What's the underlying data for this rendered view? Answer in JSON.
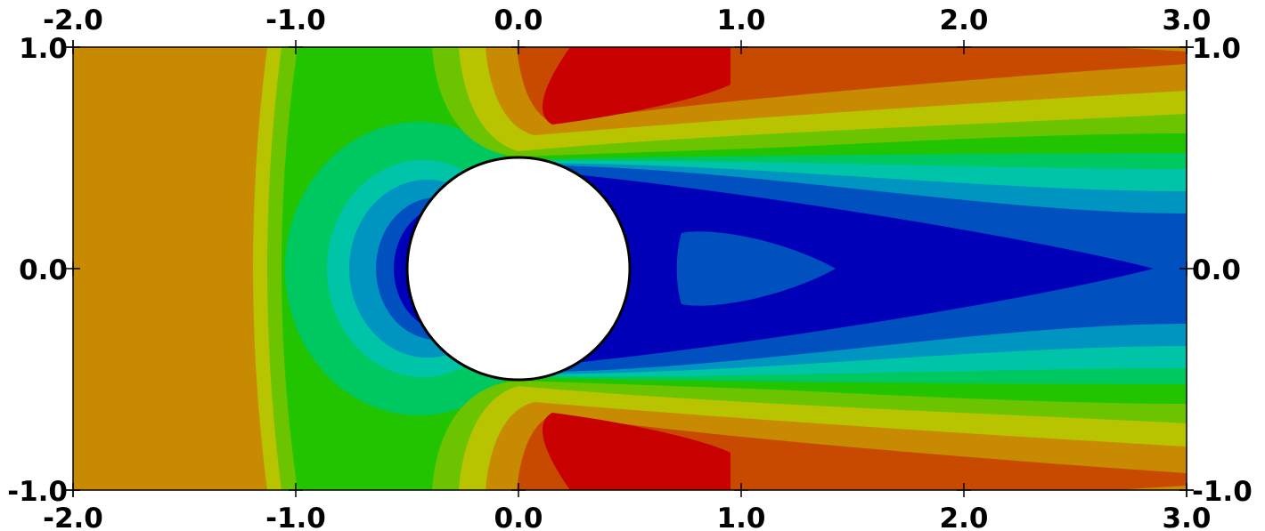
{
  "chart_data": {
    "type": "heatmap",
    "subtype": "filled-contour",
    "xlim": [
      -2.0,
      3.0
    ],
    "ylim": [
      -1.0,
      1.0
    ],
    "x_ticks": [
      "-2.0",
      "-1.0",
      "0.0",
      "1.0",
      "2.0",
      "3.0"
    ],
    "y_ticks": [
      "1.0",
      "0.0",
      "-1.0"
    ],
    "obstacle": {
      "shape": "circle",
      "center": [
        0.0,
        0.0
      ],
      "radius": 0.5
    },
    "grid": false,
    "legend": "none",
    "colormap_levels": [
      "#0000b8",
      "#0050c0",
      "#0094c0",
      "#00c4a8",
      "#00c860",
      "#22c400",
      "#6cc400",
      "#b8c400",
      "#c88a00",
      "#c84a00",
      "#c80000"
    ]
  }
}
